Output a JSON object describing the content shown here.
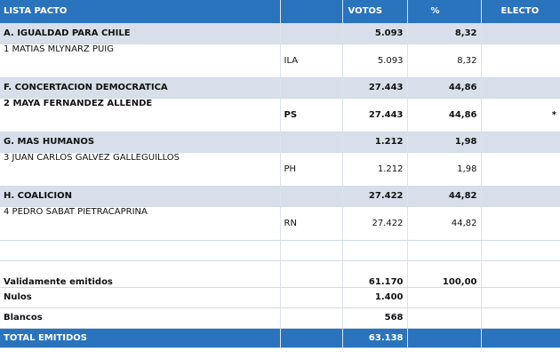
{
  "header": {
    "list": "LISTA PACTO",
    "votes": "VOTOS",
    "percent": "%",
    "elected": "ELECTO"
  },
  "pacts": [
    {
      "name": "A. IGUALDAD PARA CHILE",
      "votes": "5.093",
      "percent": "8,32",
      "candidate": {
        "name": "1 MATIAS MLYNARZ PUIG",
        "party": "ILA",
        "votes": "5.093",
        "percent": "8,32",
        "elected": ""
      }
    },
    {
      "name": "F. CONCERTACION DEMOCRATICA",
      "votes": "27.443",
      "percent": "44,86",
      "candidate": {
        "name": "2 MAYA FERNANDEZ ALLENDE",
        "party": "PS",
        "votes": "27.443",
        "percent": "44,86",
        "elected": "*"
      }
    },
    {
      "name": "G. MAS HUMANOS",
      "votes": "1.212",
      "percent": "1,98",
      "candidate": {
        "name": "3 JUAN CARLOS GALVEZ GALLEGUILLOS",
        "party": "PH",
        "votes": "1.212",
        "percent": "1,98",
        "elected": ""
      }
    },
    {
      "name": "H. COALICION",
      "votes": "27.422",
      "percent": "44,82",
      "candidate": {
        "name": "4 PEDRO SABAT PIETRACAPRINA",
        "party": "RN",
        "votes": "27.422",
        "percent": "44,82",
        "elected": ""
      }
    }
  ],
  "totals": {
    "valid_label": "Validamente emitidos",
    "valid_votes": "61.170",
    "valid_percent": "100,00",
    "null_label": "Nulos",
    "null_votes": "1.400",
    "blank_label": "Blancos",
    "blank_votes": "568",
    "total_label": "TOTAL EMITIDOS",
    "total_votes": "63.138"
  }
}
